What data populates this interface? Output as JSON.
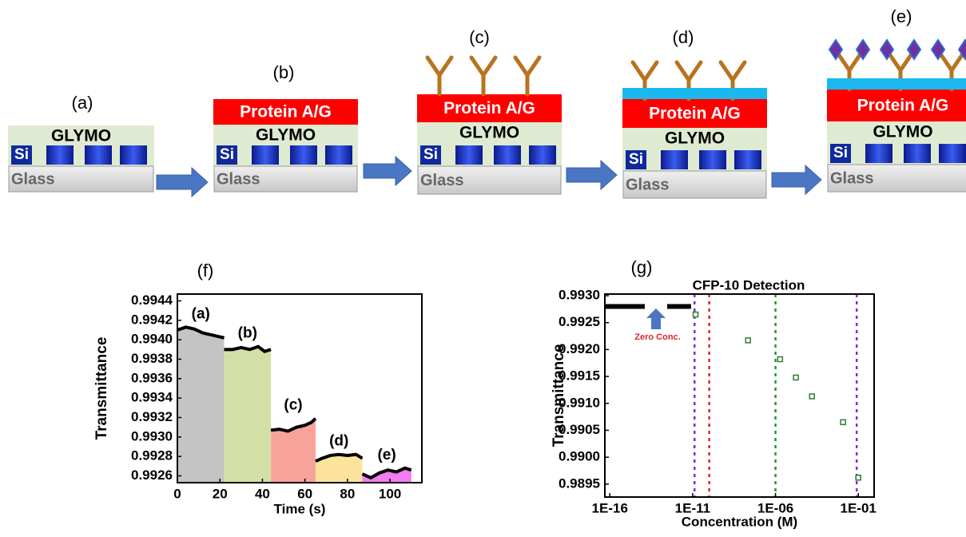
{
  "diagram": {
    "panels": [
      {
        "label": "(a)",
        "glymo": "GLYMO",
        "si": "Si",
        "glass": "Glass"
      },
      {
        "label": "(b)",
        "protein": "Protein A/G",
        "glymo": "GLYMO",
        "si": "Si",
        "glass": "Glass"
      },
      {
        "label": "(c)",
        "protein": "Protein A/G",
        "glymo": "GLYMO",
        "si": "Si",
        "glass": "Glass"
      },
      {
        "label": "(d)",
        "protein": "Protein A/G",
        "glymo": "GLYMO",
        "si": "Si",
        "glass": "Glass"
      },
      {
        "label": "(e)",
        "protein": "Protein A/G",
        "glymo": "GLYMO",
        "si": "Si",
        "glass": "Glass"
      }
    ]
  },
  "chart_data": [
    {
      "type": "area",
      "panel_label": "(f)",
      "x_label": "Time (s)",
      "y_label": "Transmittance",
      "xlim": [
        0,
        115
      ],
      "xticks": [
        0,
        20,
        40,
        60,
        80,
        100
      ],
      "ylim": [
        0.99253,
        0.99447
      ],
      "yticks": [
        0.9926,
        0.9928,
        {
          "value": 0.993,
          "label": "0.9930"
        },
        0.9932,
        0.9934,
        0.9936,
        0.9938,
        {
          "value": 0.994,
          "label": "0.9940"
        },
        0.9942,
        0.9944
      ],
      "series": [
        {
          "label": "(a)",
          "color": "#c4c4c4",
          "x": [
            0,
            4,
            8,
            12,
            16,
            20,
            22
          ],
          "values": [
            0.9941,
            0.99413,
            0.99411,
            0.99407,
            0.99405,
            0.99403,
            0.99402
          ]
        },
        {
          "label": "(b)",
          "color": "#d2e0a6",
          "x": [
            22,
            26,
            30,
            34,
            38,
            41,
            44
          ],
          "values": [
            0.9939,
            0.9939,
            0.99392,
            0.9939,
            0.99393,
            0.99388,
            0.9939
          ]
        },
        {
          "label": "(c)",
          "color": "#f8a29b",
          "x": [
            44,
            48,
            52,
            56,
            60,
            63,
            65
          ],
          "values": [
            0.99307,
            0.99308,
            0.99306,
            0.9931,
            0.99312,
            0.99315,
            0.99319
          ]
        },
        {
          "label": "(d)",
          "color": "#fbe39c",
          "x": [
            65,
            68,
            72,
            76,
            80,
            84,
            87
          ],
          "values": [
            0.99275,
            0.99278,
            0.99281,
            0.99282,
            0.99281,
            0.99282,
            0.99278
          ]
        },
        {
          "label": "(e)",
          "color": "#f27cf0",
          "x": [
            87,
            91,
            95,
            99,
            103,
            107,
            110
          ],
          "values": [
            0.99262,
            0.99258,
            0.99263,
            0.99266,
            0.99264,
            0.99268,
            0.99266
          ]
        }
      ]
    },
    {
      "type": "scatter",
      "panel_label": "(g)",
      "title": "CFP-10 Detection",
      "x_label": "Concentration (M)",
      "y_label": "Transmittance",
      "log_x": true,
      "xlim": [
        5e-17,
        0.9
      ],
      "xticks": [
        {
          "value": 1e-16,
          "label": "1E-16"
        },
        {
          "value": 1e-11,
          "label": "1E-11"
        },
        {
          "value": 1e-06,
          "label": "1E-06"
        },
        {
          "value": 0.1,
          "label": "1E-01"
        }
      ],
      "ylim": [
        0.98926,
        0.99303
      ],
      "yticks": [
        0.9895,
        {
          "value": 0.99,
          "label": "0.9900"
        },
        0.9905,
        {
          "value": 0.991,
          "label": "0.9910"
        },
        0.9915,
        {
          "value": 0.992,
          "label": "0.9920"
        },
        0.9925,
        {
          "value": 0.993,
          "label": "0.9930"
        }
      ],
      "color": "#2e7d32",
      "x": [
        1.5e-11,
        2.2e-08,
        1.9e-06,
        1.7e-05,
        0.00016,
        0.012,
        0.1
      ],
      "values": [
        0.99265,
        0.99217,
        0.99182,
        0.99148,
        0.99113,
        0.99065,
        0.98962
      ],
      "zero_level": {
        "value": 0.9928,
        "x": [
          5e-17,
          8e-12
        ],
        "annotation": "Zero Conc."
      },
      "vlines": [
        {
          "x": 1.3e-11,
          "color": "#7b2fd0"
        },
        {
          "x": 1e-10,
          "color": "#e0242a"
        },
        {
          "x": 1e-06,
          "color": "#1f9a2a"
        },
        {
          "x": 0.08,
          "color": "#7b2fd0"
        }
      ]
    }
  ]
}
